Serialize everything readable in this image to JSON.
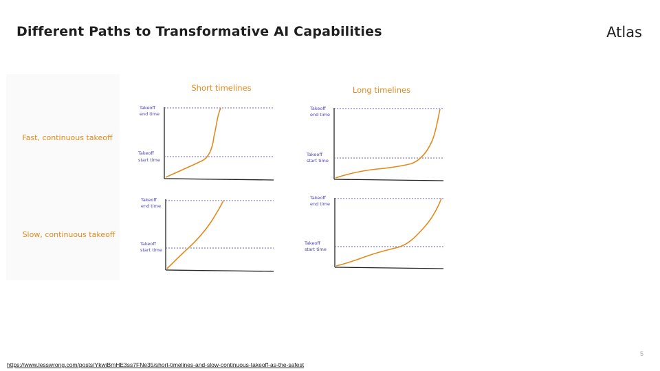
{
  "slide": {
    "title": "Different Paths to Transformative AI Capabilities",
    "brand": "Atlas",
    "page_number": "5",
    "source_url": "https://www.lesswrong.com/posts/YkwiBmHE3ss7FNe35/short-timelines-and-slow-continuous-takeoff-as-the-safest"
  },
  "figure": {
    "columns": [
      "Short timelines",
      "Long timelines"
    ],
    "rows": [
      "Fast, continuous takeoff",
      "Slow, continuous takeoff"
    ],
    "takeoff_end_label": [
      "Takeoff",
      "end time"
    ],
    "takeoff_start_label": [
      "Takeoff",
      "start time"
    ],
    "colors": {
      "curve": "#e28a1e",
      "guide": "#6a5ad8",
      "axis": "#222222",
      "label": "#e28a1e",
      "annot": "#4a3fb0"
    }
  }
}
